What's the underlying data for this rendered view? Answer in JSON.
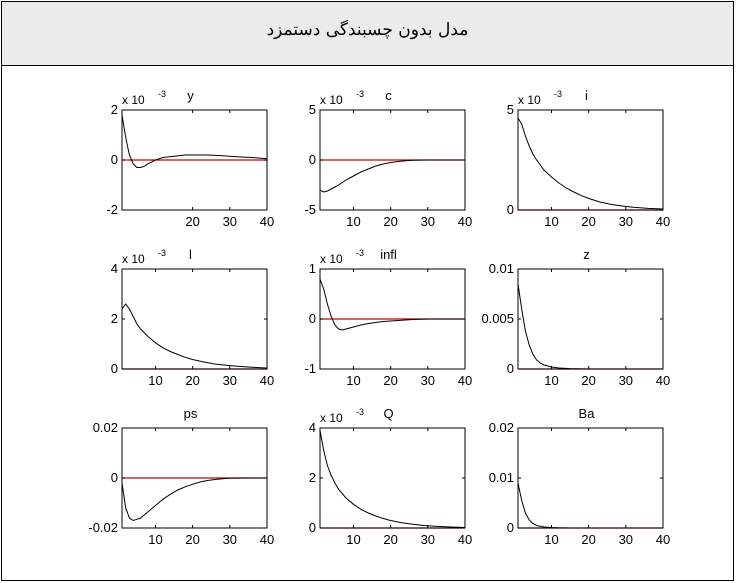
{
  "header": {
    "caption": "مدل بدون چسبندگی دستمزد"
  },
  "chart_data": [
    {
      "type": "line",
      "title": "y",
      "multiplier": "x 10",
      "exponent": "-3",
      "xlim": [
        1,
        40
      ],
      "ylim": [
        -2,
        2
      ],
      "xticks": [
        20,
        30,
        40
      ],
      "yticks": [
        -2,
        0,
        2
      ],
      "ytick_labels": [
        "-2",
        "0",
        "2"
      ],
      "series": [
        {
          "x": [
            1,
            2,
            3,
            4,
            5,
            6,
            7,
            8,
            10,
            12,
            15,
            18,
            21,
            24,
            27,
            30,
            33,
            36,
            40
          ],
          "values": [
            1.8,
            0.9,
            0.2,
            -0.15,
            -0.3,
            -0.3,
            -0.25,
            -0.15,
            0.0,
            0.1,
            0.15,
            0.2,
            0.2,
            0.2,
            0.18,
            0.15,
            0.12,
            0.1,
            0.05
          ]
        }
      ]
    },
    {
      "type": "line",
      "title": "c",
      "multiplier": "x 10",
      "exponent": "-3",
      "xlim": [
        1,
        40
      ],
      "ylim": [
        -5,
        5
      ],
      "xticks": [
        10,
        20,
        30,
        40
      ],
      "yticks": [
        -5,
        0,
        5
      ],
      "ytick_labels": [
        "-5",
        "0",
        "5"
      ],
      "series": [
        {
          "x": [
            1,
            2,
            3,
            4,
            5,
            6,
            8,
            10,
            12,
            14,
            16,
            18,
            20,
            22,
            24,
            26,
            28,
            30,
            34,
            40
          ],
          "values": [
            -3.0,
            -3.2,
            -3.1,
            -2.9,
            -2.7,
            -2.5,
            -2.0,
            -1.6,
            -1.2,
            -0.9,
            -0.6,
            -0.4,
            -0.25,
            -0.15,
            -0.08,
            -0.03,
            -0.01,
            0.0,
            0.0,
            0.0
          ]
        }
      ]
    },
    {
      "type": "line",
      "title": "i",
      "multiplier": "x 10",
      "exponent": "-3",
      "xlim": [
        1,
        40
      ],
      "ylim": [
        0,
        5
      ],
      "xticks": [
        10,
        20,
        30,
        40
      ],
      "yticks": [
        0,
        5
      ],
      "ytick_labels": [
        "0",
        "5"
      ],
      "series": [
        {
          "x": [
            1,
            2,
            3,
            4,
            5,
            6,
            8,
            10,
            12,
            14,
            16,
            18,
            20,
            23,
            26,
            29,
            32,
            36,
            40
          ],
          "values": [
            4.6,
            4.3,
            3.7,
            3.2,
            2.8,
            2.5,
            2.0,
            1.65,
            1.35,
            1.1,
            0.9,
            0.72,
            0.58,
            0.4,
            0.28,
            0.2,
            0.14,
            0.08,
            0.05
          ]
        }
      ]
    },
    {
      "type": "line",
      "title": "l",
      "multiplier": "x 10",
      "exponent": "-3",
      "xlim": [
        1,
        40
      ],
      "ylim": [
        0,
        4
      ],
      "xticks": [
        10,
        20,
        30,
        40
      ],
      "yticks": [
        0,
        2,
        4
      ],
      "ytick_labels": [
        "0",
        "2",
        "4"
      ],
      "series": [
        {
          "x": [
            1,
            2,
            3,
            4,
            5,
            6,
            8,
            10,
            12,
            14,
            16,
            18,
            20,
            23,
            26,
            29,
            32,
            36,
            40
          ],
          "values": [
            2.4,
            2.6,
            2.4,
            2.1,
            1.8,
            1.6,
            1.3,
            1.05,
            0.85,
            0.7,
            0.58,
            0.47,
            0.38,
            0.28,
            0.2,
            0.15,
            0.11,
            0.07,
            0.04
          ]
        }
      ]
    },
    {
      "type": "line",
      "title": "infl",
      "multiplier": "x 10",
      "exponent": "-3",
      "xlim": [
        1,
        40
      ],
      "ylim": [
        -1,
        1
      ],
      "xticks": [
        10,
        20,
        30,
        40
      ],
      "yticks": [
        -1,
        0,
        1
      ],
      "ytick_labels": [
        "-1",
        "0",
        "1"
      ],
      "series": [
        {
          "x": [
            1,
            2,
            3,
            4,
            5,
            6,
            7,
            8,
            10,
            12,
            14,
            16,
            18,
            20,
            22,
            24,
            26,
            28,
            30,
            40
          ],
          "values": [
            0.8,
            0.6,
            0.3,
            0.05,
            -0.12,
            -0.2,
            -0.22,
            -0.2,
            -0.16,
            -0.12,
            -0.09,
            -0.07,
            -0.05,
            -0.04,
            -0.03,
            -0.02,
            -0.01,
            -0.005,
            0.0,
            0.0
          ]
        }
      ]
    },
    {
      "type": "line",
      "title": "z",
      "xlim": [
        1,
        40
      ],
      "ylim": [
        0,
        0.01
      ],
      "xticks": [
        10,
        20,
        30,
        40
      ],
      "yticks": [
        0,
        0.005,
        0.01
      ],
      "ytick_labels": [
        "0",
        "0.005",
        "0.01"
      ],
      "series": [
        {
          "x": [
            1,
            2,
            3,
            4,
            5,
            6,
            7,
            8,
            10,
            12,
            15,
            20,
            30,
            40
          ],
          "values": [
            0.0085,
            0.006,
            0.0038,
            0.0024,
            0.0015,
            0.0009,
            0.0006,
            0.0004,
            0.0002,
            0.0001,
            4e-05,
            0.0,
            0.0,
            0.0
          ]
        }
      ]
    },
    {
      "type": "line",
      "title": "ps",
      "xlim": [
        1,
        40
      ],
      "ylim": [
        -0.02,
        0.02
      ],
      "xticks": [
        10,
        20,
        30,
        40
      ],
      "yticks": [
        -0.02,
        0,
        0.02
      ],
      "ytick_labels": [
        "-0.02",
        "0",
        "0.02"
      ],
      "series": [
        {
          "x": [
            1,
            2,
            3,
            4,
            5,
            6,
            8,
            10,
            12,
            14,
            16,
            18,
            20,
            22,
            24,
            26,
            28,
            30,
            34,
            40
          ],
          "values": [
            -0.002,
            -0.012,
            -0.016,
            -0.017,
            -0.0165,
            -0.016,
            -0.0135,
            -0.011,
            -0.0085,
            -0.0065,
            -0.0048,
            -0.0035,
            -0.0025,
            -0.0016,
            -0.001,
            -0.0006,
            -0.0003,
            -0.0001,
            0.0,
            0.0
          ]
        }
      ]
    },
    {
      "type": "line",
      "title": "Q",
      "multiplier": "x 10",
      "exponent": "-3",
      "xlim": [
        1,
        40
      ],
      "ylim": [
        0,
        4
      ],
      "xticks": [
        10,
        20,
        30,
        40
      ],
      "yticks": [
        0,
        2,
        4
      ],
      "ytick_labels": [
        "0",
        "2",
        "4"
      ],
      "series": [
        {
          "x": [
            1,
            2,
            3,
            4,
            5,
            6,
            8,
            10,
            12,
            14,
            16,
            18,
            20,
            23,
            26,
            29,
            32,
            36,
            40
          ],
          "values": [
            3.9,
            3.1,
            2.5,
            2.1,
            1.8,
            1.55,
            1.2,
            0.95,
            0.75,
            0.6,
            0.48,
            0.38,
            0.3,
            0.21,
            0.15,
            0.1,
            0.07,
            0.04,
            0.02
          ]
        }
      ]
    },
    {
      "type": "line",
      "title": "Ba",
      "xlim": [
        1,
        40
      ],
      "ylim": [
        0,
        0.02
      ],
      "xticks": [
        10,
        20,
        30,
        40
      ],
      "yticks": [
        0,
        0.01,
        0.02
      ],
      "ytick_labels": [
        "0",
        "0.01",
        "0.02"
      ],
      "series": [
        {
          "x": [
            1,
            2,
            3,
            4,
            5,
            6,
            8,
            10,
            12,
            15,
            20,
            30,
            40
          ],
          "values": [
            0.009,
            0.0055,
            0.003,
            0.0016,
            0.0009,
            0.0005,
            0.0002,
            0.0001,
            4e-05,
            0.0,
            0.0,
            0.0,
            0.0
          ]
        }
      ]
    }
  ]
}
